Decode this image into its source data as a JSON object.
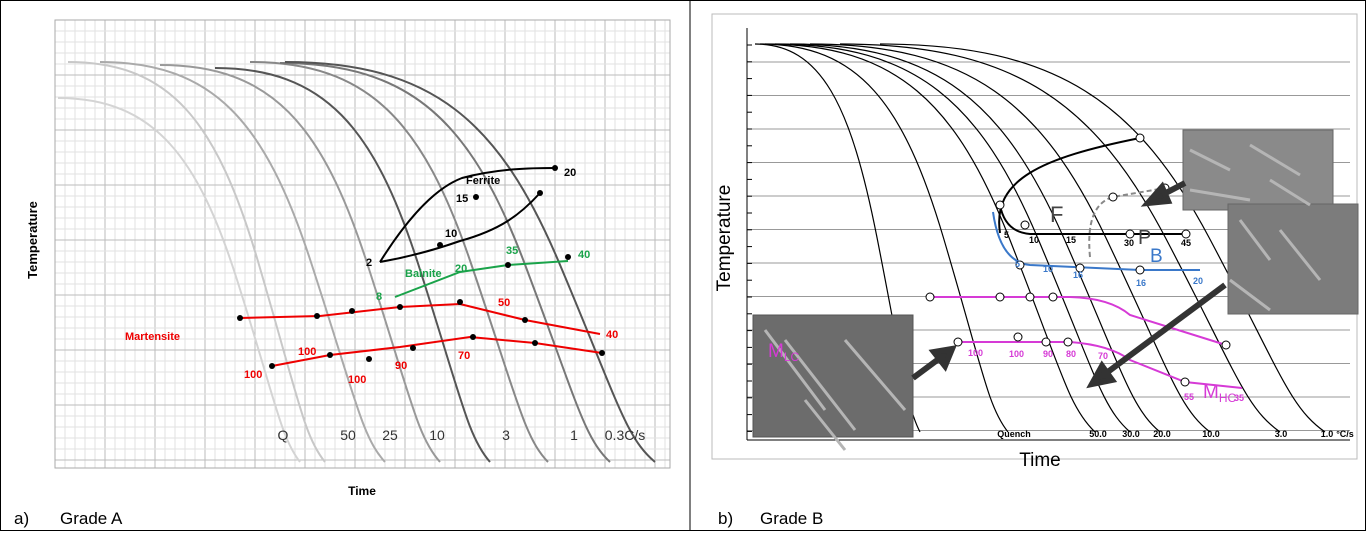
{
  "panels": [
    {
      "label": "a)",
      "name": "Grade A",
      "y_label": "Temperature",
      "x_label": "Time",
      "rate_labels": [
        "Q",
        "50",
        "25",
        "10",
        "3",
        "1",
        "0.3C/s"
      ],
      "phases": {
        "ferrite": "Ferrite",
        "bainite": "Bainite",
        "martensite": "Martensite"
      },
      "ferrite_points": [
        "20",
        "15",
        "10",
        "2"
      ],
      "bainite_points": [
        "8",
        "20",
        "35",
        "40"
      ],
      "martensite_points": [
        "50",
        "40",
        "100",
        "100",
        "100",
        "90",
        "70"
      ]
    },
    {
      "label": "b)",
      "name": "Grade B",
      "y_label": "Temperature",
      "x_label": "Time",
      "rate_labels": [
        "Quench",
        "50.0",
        "30.0",
        "20.0",
        "10.0",
        "3.0",
        "1.0",
        "°C/s"
      ],
      "phases": {
        "ferrite": "F",
        "pearlite": "P",
        "bainite": "B",
        "martensite_lc": "M",
        "martensite_lc_sub": "LC",
        "martensite_hc": "M",
        "martensite_hc_sub": "HC"
      },
      "ferrite_points": [
        "5",
        "10",
        "15",
        "30",
        "45"
      ],
      "bainite_points": [
        "5",
        "10",
        "16",
        "16",
        "20"
      ],
      "martensite_points": [
        "100",
        "100",
        "90",
        "80",
        "70",
        "55",
        "35"
      ]
    }
  ]
}
